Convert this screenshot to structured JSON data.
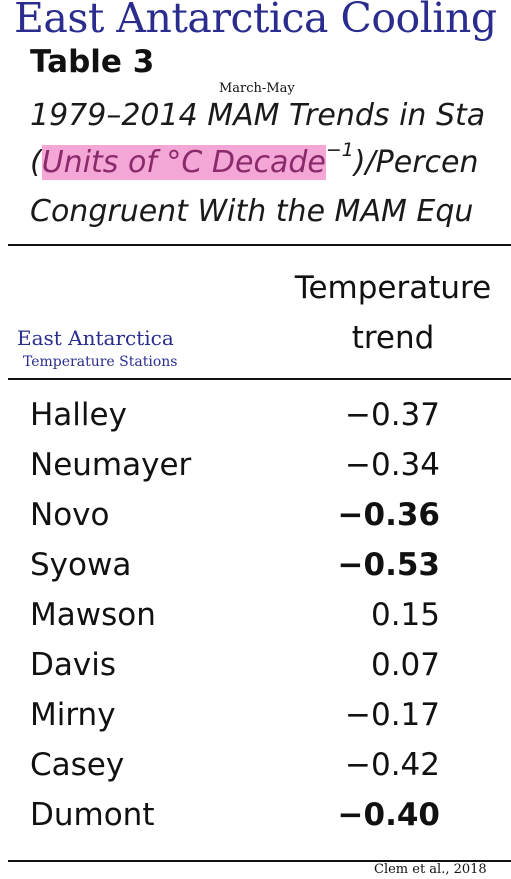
{
  "banner": {
    "title": "East Antarctica Cooling"
  },
  "table": {
    "label": "Table 3",
    "caption_line1": "1979–2014 MAM Trends in Sta",
    "caption_line2_highlight": "Units of °C Decade",
    "caption_line2_open": "(",
    "caption_line2_exponent": "−1",
    "caption_line2_rest": ")/Percen",
    "caption_line3": "Congruent With the MAM Equ",
    "column_header_line1": "Temperature",
    "column_header_line2": "trend",
    "rows": [
      {
        "station": "Halley",
        "trend": "−0.37",
        "bold": false
      },
      {
        "station": "Neumayer",
        "trend": "−0.34",
        "bold": false
      },
      {
        "station": "Novo",
        "trend": "−0.36",
        "bold": true
      },
      {
        "station": "Syowa",
        "trend": "−0.53",
        "bold": true
      },
      {
        "station": "Mawson",
        "trend": "0.15",
        "bold": false
      },
      {
        "station": "Davis",
        "trend": "0.07",
        "bold": false
      },
      {
        "station": "Mirny",
        "trend": "−0.17",
        "bold": false
      },
      {
        "station": "Casey",
        "trend": "−0.42",
        "bold": false
      },
      {
        "station": "Dumont",
        "trend": "−0.40",
        "bold": true
      }
    ]
  },
  "annotations": {
    "season_note": "March-May",
    "stations_label": "East Antarctica",
    "stations_sublabel": "Temperature Stations",
    "source": "Clem et al., 2018"
  },
  "colors": {
    "banner": "#2a2c8e",
    "highlight": "#f4a6d6"
  }
}
